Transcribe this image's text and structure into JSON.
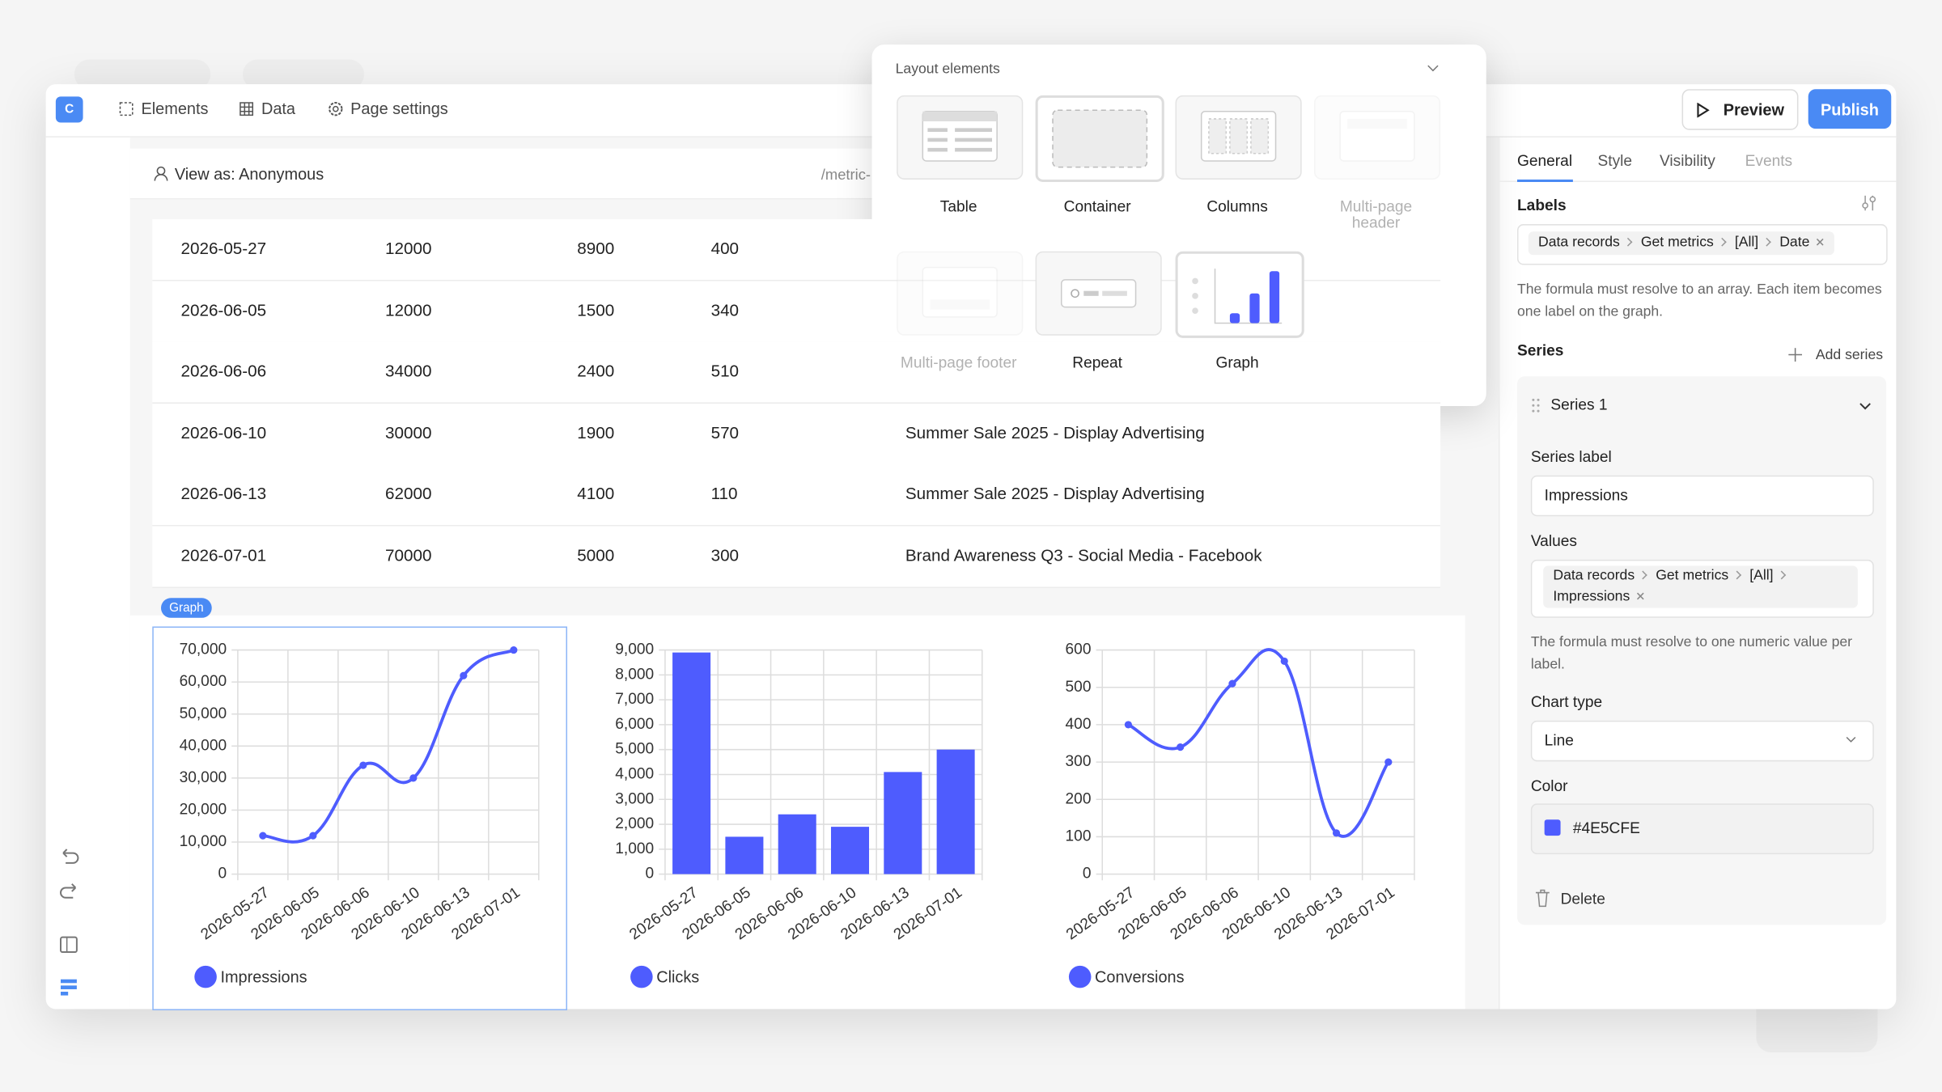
{
  "app": {
    "logo": "C",
    "nav": [
      "Elements",
      "Data",
      "Page settings"
    ],
    "preview": "Preview",
    "publish": "Publish"
  },
  "canvas": {
    "view_as": "View as: Anonymous",
    "path": "/metric-",
    "graph_badge": "Graph"
  },
  "table": {
    "rows": [
      [
        "2026-05-27",
        12000,
        8900,
        400
      ],
      [
        "2026-06-05",
        12000,
        1500,
        340
      ],
      [
        "2026-06-06",
        34000,
        2400,
        510
      ],
      [
        "2026-06-10",
        30000,
        1900,
        570,
        "Summer Sale 2025 - Display Advertising"
      ],
      [
        "2026-06-13",
        62000,
        4100,
        110,
        "Summer Sale 2025 - Display Advertising"
      ],
      [
        "2026-07-01",
        70000,
        5000,
        300,
        "Brand Awareness Q3 - Social Media - Facebook"
      ]
    ]
  },
  "layout_elements": {
    "title": "Layout elements",
    "items": [
      "Table",
      "Container",
      "Columns",
      "Multi-page header",
      "Multi-page footer",
      "Repeat",
      "Graph"
    ]
  },
  "settings": {
    "tabs": [
      "General",
      "Style",
      "Visibility",
      "Events"
    ],
    "labels_title": "Labels",
    "labels_formula": [
      "Data records",
      "Get metrics",
      "[All]",
      "Date"
    ],
    "labels_help": "The formula must resolve to an array. Each item becomes one label on the graph.",
    "series_title": "Series",
    "add_series": "Add series",
    "series_name": "Series 1",
    "series_label_title": "Series label",
    "series_label_value": "Impressions",
    "values_title": "Values",
    "values_formula": [
      "Data records",
      "Get metrics",
      "[All]",
      "Impressions"
    ],
    "values_help": "The formula must resolve to one numeric value per label.",
    "chart_type_title": "Chart type",
    "chart_type_value": "Line",
    "color_title": "Color",
    "color_value": "#4E5CFE",
    "delete": "Delete"
  },
  "chart_data": [
    {
      "type": "line",
      "categories": [
        "2026-05-27",
        "2026-06-05",
        "2026-06-06",
        "2026-06-10",
        "2026-06-13",
        "2026-07-01"
      ],
      "series": [
        {
          "name": "Impressions",
          "color": "#4e5cfe",
          "values": [
            12000,
            12000,
            34000,
            30000,
            62000,
            70000
          ]
        }
      ],
      "ylim": [
        0,
        70000
      ],
      "yticks": [
        0,
        {
          "value": 10000,
          "label": "10,000"
        },
        {
          "value": 20000,
          "label": "20,000"
        },
        {
          "value": 30000,
          "label": "30,000"
        },
        {
          "value": 40000,
          "label": "40,000"
        },
        {
          "value": 50000,
          "label": "50,000"
        },
        {
          "value": 60000,
          "label": "60,000"
        },
        {
          "value": 70000,
          "label": "70,000"
        }
      ],
      "grid": true,
      "legend": "bottom"
    },
    {
      "type": "bar",
      "categories": [
        "2026-05-27",
        "2026-06-05",
        "2026-06-06",
        "2026-06-10",
        "2026-06-13",
        "2026-07-01"
      ],
      "series": [
        {
          "name": "Clicks",
          "color": "#4e5cfe",
          "values": [
            8900,
            1500,
            2400,
            1900,
            4100,
            5000
          ]
        }
      ],
      "ylim": [
        0,
        9000
      ],
      "yticks": [
        0,
        {
          "value": 1000,
          "label": "1,000"
        },
        {
          "value": 2000,
          "label": "2,000"
        },
        {
          "value": 3000,
          "label": "3,000"
        },
        {
          "value": 4000,
          "label": "4,000"
        },
        {
          "value": 5000,
          "label": "5,000"
        },
        {
          "value": 6000,
          "label": "6,000"
        },
        {
          "value": 7000,
          "label": "7,000"
        },
        {
          "value": 8000,
          "label": "8,000"
        },
        {
          "value": 9000,
          "label": "9,000"
        }
      ],
      "grid": true,
      "legend": "bottom"
    },
    {
      "type": "line",
      "categories": [
        "2026-05-27",
        "2026-06-05",
        "2026-06-06",
        "2026-06-10",
        "2026-06-13",
        "2026-07-01"
      ],
      "series": [
        {
          "name": "Conversions",
          "color": "#4e5cfe",
          "values": [
            400,
            340,
            510,
            570,
            110,
            300
          ]
        }
      ],
      "ylim": [
        0,
        600
      ],
      "yticks": [
        0,
        100,
        200,
        300,
        400,
        500,
        600
      ],
      "grid": true,
      "legend": "bottom"
    }
  ]
}
